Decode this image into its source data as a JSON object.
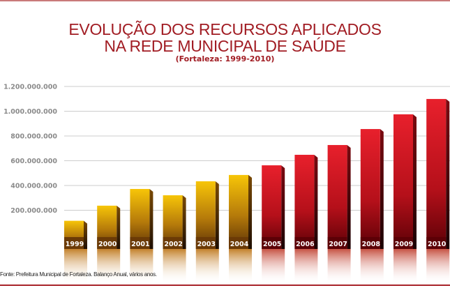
{
  "chart_data": {
    "type": "bar",
    "title": "EVOLUÇÃO DOS RECURSOS APLICADOS",
    "title_line2": "NA REDE MUNICIPAL DE SAÚDE",
    "subtitle": "(Fortaleza: 1999-2010)",
    "xlabel": "",
    "ylabel": "",
    "ylim": [
      0,
      1200000000
    ],
    "grid": true,
    "y_ticks": [
      {
        "value": 1200000000,
        "label": "1.200.000.000"
      },
      {
        "value": 1000000000,
        "label": "1.000.000.000"
      },
      {
        "value": 800000000,
        "label": "800.000.000"
      },
      {
        "value": 600000000,
        "label": "600.000.000"
      },
      {
        "value": 400000000,
        "label": "400.000.000"
      },
      {
        "value": 200000000,
        "label": "200.000.000"
      }
    ],
    "categories": [
      "1999",
      "2000",
      "2001",
      "2002",
      "2003",
      "2004",
      "2005",
      "2006",
      "2007",
      "2008",
      "2009",
      "2010"
    ],
    "values": [
      115000000,
      237000000,
      372000000,
      321000000,
      434000000,
      485000000,
      563000000,
      648000000,
      727000000,
      856000000,
      975000000,
      1099000000
    ],
    "bar_colors": [
      "gold",
      "gold",
      "gold",
      "gold",
      "gold",
      "gold",
      "red",
      "red",
      "red",
      "red",
      "red",
      "red"
    ],
    "source": "Fonte: Prefeitura Municipal de Fortaleza. Balanço Anual, vários anos."
  },
  "colors": {
    "title": "#a11c23",
    "gold_top": "#f5c20a",
    "gold_bottom": "#6b3a06",
    "red_top": "#e61e2a",
    "red_bottom": "#5c0006",
    "grid": "#cccccc",
    "tick_label": "#8a8a8a"
  }
}
